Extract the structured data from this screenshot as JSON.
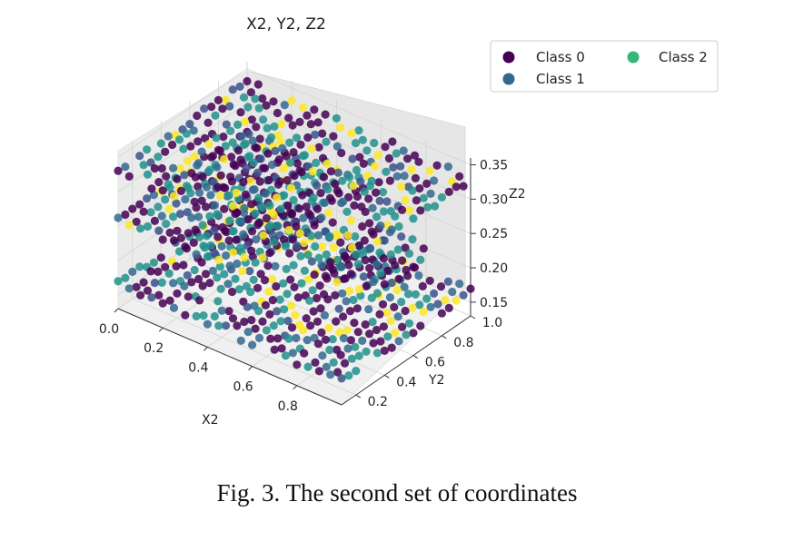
{
  "chart_data": {
    "type": "scatter",
    "projection": "3d",
    "title": "X2, Y2, Z2",
    "xlabel": "X2",
    "ylabel": "Y2",
    "zlabel": "Z2",
    "xlim": [
      0.0,
      1.0
    ],
    "ylim": [
      0.1,
      1.0
    ],
    "zlim": [
      0.13,
      0.36
    ],
    "x_ticks": [
      "0.0",
      "0.2",
      "0.4",
      "0.6",
      "0.8"
    ],
    "y_ticks": [
      "0.2",
      "0.4",
      "0.6",
      "0.8",
      "1.0"
    ],
    "z_ticks": [
      "0.15",
      "0.20",
      "0.25",
      "0.30",
      "0.35"
    ],
    "grid": true,
    "legend": {
      "placement": "upper-right outside",
      "columns": 2
    },
    "series": [
      {
        "name": "Class 0",
        "color": "#440154"
      },
      {
        "name": "Class 1",
        "color": "#31688e"
      },
      {
        "name": "Class 2",
        "color": "#35b779"
      }
    ],
    "unlabeled_color": "#fde725",
    "layers": [
      {
        "z": 0.33,
        "x_range": [
          0.0,
          1.0
        ],
        "y_range": [
          0.1,
          1.0
        ],
        "spacing": 0.05
      },
      {
        "z": 0.165,
        "x_range": [
          0.0,
          1.0
        ],
        "y_range": [
          0.1,
          1.0
        ],
        "spacing": 0.05
      },
      {
        "z": 0.26,
        "x_range": [
          0.0,
          0.55
        ],
        "y_range": [
          0.1,
          1.0
        ],
        "spacing": 0.05
      },
      {
        "z": 0.26,
        "x_range": [
          0.75,
          1.0
        ],
        "y_range": [
          0.3,
          0.75
        ],
        "spacing": 0.05
      }
    ],
    "seed": 7
  },
  "caption": "Fig. 3.  The second set of coordinates"
}
